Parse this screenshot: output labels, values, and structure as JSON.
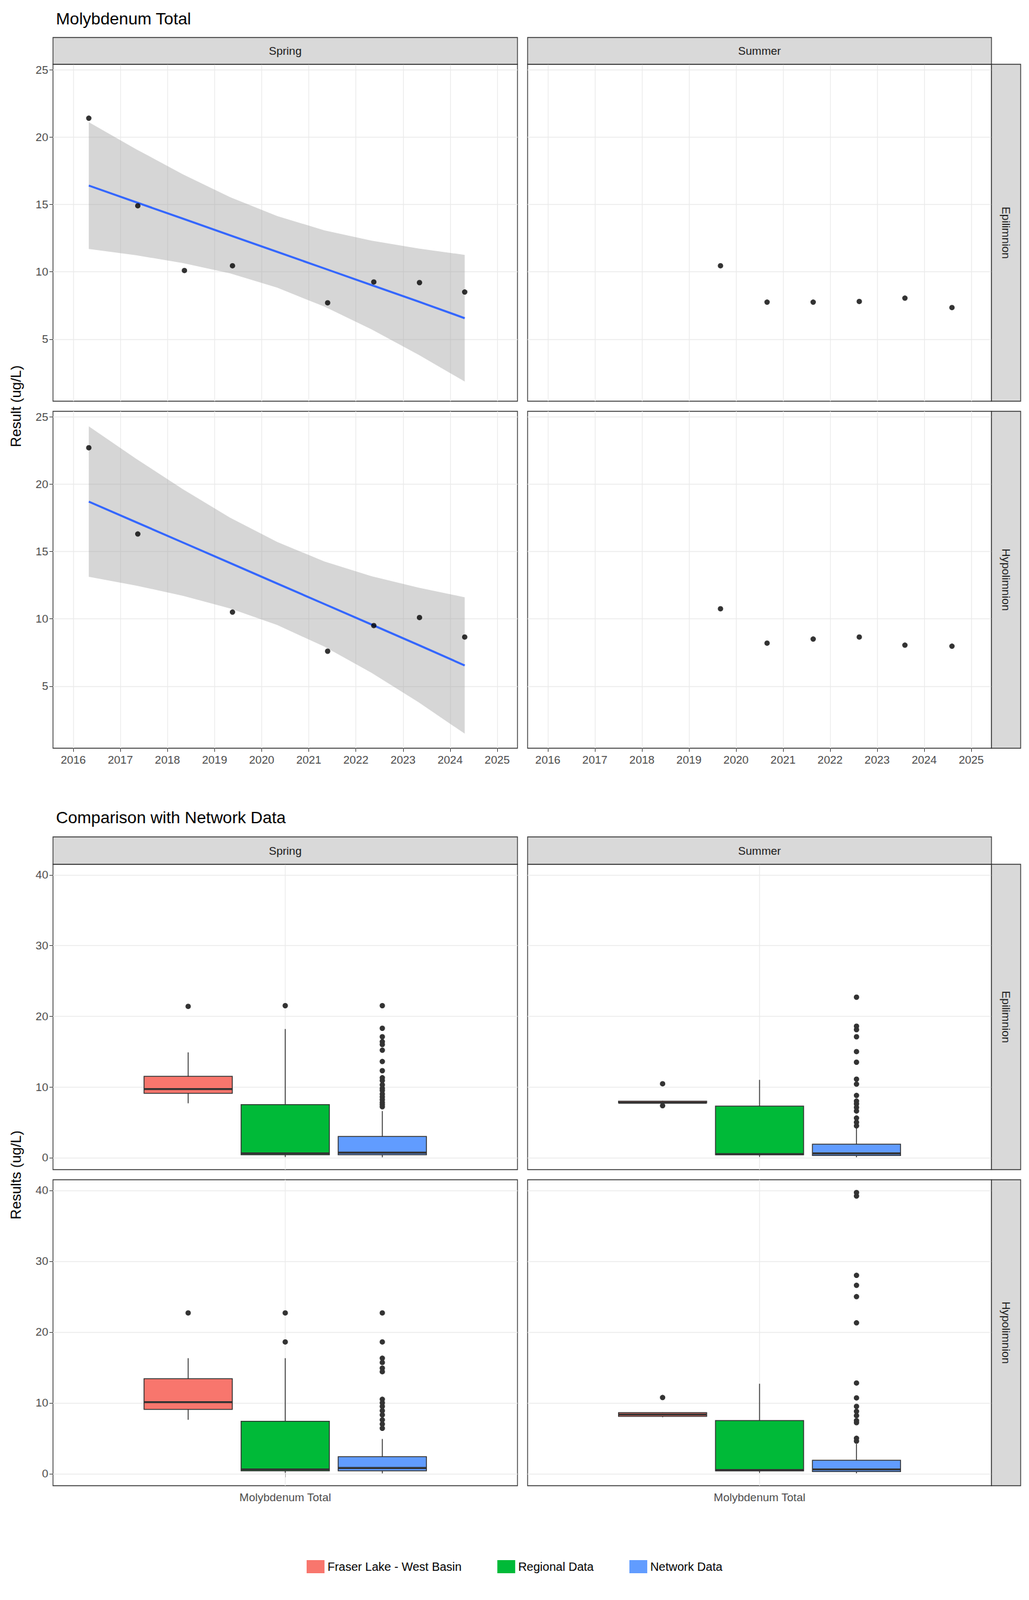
{
  "chart_data": [
    {
      "type": "scatter",
      "title": "Molybdenum Total",
      "y_label": "Result (ug/L)",
      "columns": [
        "Spring",
        "Summer"
      ],
      "rows": [
        "Epilimnion",
        "Hypolimnion"
      ],
      "xlim": [
        2015.57,
        2025.43
      ],
      "xticks": [
        2016,
        2017,
        2018,
        2019,
        2020,
        2021,
        2022,
        2023,
        2024,
        2025
      ],
      "ylim": [
        0.4,
        25.4
      ],
      "yticks": [
        5,
        10,
        15,
        20,
        25
      ],
      "grid": true,
      "color": "#000000",
      "marker": "circle",
      "panels": [
        {
          "column": "Spring",
          "row": "Epilimnion",
          "x": [
            2016.33,
            2017.37,
            2018.36,
            2019.38,
            2021.4,
            2022.38,
            2023.35,
            2024.31
          ],
          "values": [
            21.4,
            14.9,
            10.1,
            10.45,
            7.7,
            9.25,
            9.2,
            8.5
          ],
          "fit": {
            "type": "line",
            "color": "#3366FF",
            "line_style": "solid",
            "x": [
              2016.33,
              2017.33,
              2018.33,
              2019.33,
              2020.33,
              2021.33,
              2022.33,
              2023.33,
              2024.31
            ],
            "values": [
              16.4,
              15.17,
              13.94,
              12.71,
              11.48,
              10.25,
              9.02,
              7.79,
              6.56
            ],
            "lower": [
              11.7,
              11.23,
              10.65,
              9.88,
              8.82,
              7.42,
              5.73,
              3.85,
              1.86
            ],
            "upper": [
              21.1,
              19.11,
              17.23,
              15.54,
              14.14,
              13.08,
              12.31,
              11.73,
              11.26
            ]
          }
        },
        {
          "column": "Summer",
          "row": "Epilimnion",
          "x": [
            2019.67,
            2020.66,
            2021.64,
            2022.62,
            2023.59,
            2024.59
          ],
          "values": [
            10.45,
            7.75,
            7.75,
            7.8,
            8.05,
            7.35
          ]
        },
        {
          "column": "Spring",
          "row": "Hypolimnion",
          "x": [
            2016.33,
            2017.37,
            2019.38,
            2021.4,
            2022.38,
            2023.35,
            2024.31
          ],
          "values": [
            22.7,
            16.3,
            10.5,
            7.6,
            9.5,
            10.1,
            8.65
          ],
          "fit": {
            "type": "line",
            "color": "#3366FF",
            "line_style": "solid",
            "x": [
              2016.33,
              2017.33,
              2018.33,
              2019.33,
              2020.33,
              2021.33,
              2022.33,
              2023.33,
              2024.31
            ],
            "values": [
              18.7,
              17.18,
              15.66,
              14.14,
              12.62,
              11.1,
              9.58,
              8.06,
              6.54
            ],
            "lower": [
              13.12,
              12.47,
              11.71,
              10.77,
              9.54,
              7.94,
              6.0,
              3.81,
              1.48
            ],
            "upper": [
              24.28,
              21.89,
              19.61,
              17.51,
              15.7,
              14.26,
              13.16,
              12.31,
              11.6
            ]
          }
        },
        {
          "column": "Summer",
          "row": "Hypolimnion",
          "x": [
            2019.67,
            2020.66,
            2021.64,
            2022.62,
            2023.59,
            2024.59
          ],
          "values": [
            10.75,
            8.2,
            8.5,
            8.65,
            8.05,
            7.97
          ]
        }
      ]
    },
    {
      "type": "boxplot",
      "title": "Comparison with Network Data",
      "y_label": "Results (ug/L)",
      "columns": [
        "Spring",
        "Summer"
      ],
      "rows": [
        "Epilimnion",
        "Hypolimnion"
      ],
      "categories": [
        "Molybdenum Total"
      ],
      "ylim": [
        -1.7,
        41.5
      ],
      "yticks": [
        0,
        10,
        20,
        30,
        40
      ],
      "grid": true,
      "legend": "bottom",
      "series": [
        {
          "name": "Fraser Lake - West Basin",
          "color": "#F8766D"
        },
        {
          "name": "Regional Data",
          "color": "#00BA38"
        },
        {
          "name": "Network Data",
          "color": "#619CFF"
        }
      ],
      "panels": [
        {
          "column": "Spring",
          "row": "Epilimnion",
          "boxes": [
            {
              "stats": [
                7.7,
                9.1,
                9.7,
                11.5,
                14.9
              ],
              "outliers": [
                21.4
              ]
            },
            {
              "stats": [
                0.1,
                0.4,
                0.6,
                7.5,
                18.2
              ],
              "outliers": [
                21.5
              ]
            },
            {
              "stats": [
                0.05,
                0.4,
                0.7,
                3.0,
                6.6
              ],
              "outliers": [
                21.5,
                18.3,
                17.1,
                16.4,
                16.0,
                15.2,
                13.6,
                12.3,
                11.3,
                10.9,
                10.3,
                9.8,
                9.5,
                9.0,
                8.6,
                8.2,
                7.8,
                7.5,
                7.2
              ]
            }
          ]
        },
        {
          "column": "Summer",
          "row": "Epilimnion",
          "boxes": [
            {
              "stats": [
                7.75,
                7.75,
                7.78,
                7.99,
                8.05
              ],
              "outliers": [
                10.45,
                7.35
              ]
            },
            {
              "stats": [
                0.1,
                0.4,
                0.5,
                7.3,
                11.0
              ],
              "outliers": []
            },
            {
              "stats": [
                0.05,
                0.3,
                0.6,
                1.9,
                4.2
              ],
              "outliers": [
                22.7,
                18.6,
                18.1,
                17.1,
                15.0,
                13.5,
                11.1,
                10.4,
                8.8,
                8.0,
                7.6,
                7.1,
                6.6,
                5.6,
                5.0,
                4.5
              ]
            }
          ]
        },
        {
          "column": "Spring",
          "row": "Hypolimnion",
          "boxes": [
            {
              "stats": [
                7.6,
                9.08,
                10.1,
                13.4,
                16.3
              ],
              "outliers": [
                22.7
              ]
            },
            {
              "stats": [
                0.1,
                0.4,
                0.6,
                7.4,
                16.3
              ],
              "outliers": [
                22.7,
                18.6
              ]
            },
            {
              "stats": [
                0.05,
                0.4,
                0.8,
                2.4,
                4.9
              ],
              "outliers": [
                22.7,
                18.6,
                16.3,
                15.7,
                14.9,
                14.4,
                10.5,
                10.0,
                9.5,
                8.9,
                8.3,
                7.6,
                7.0,
                6.4
              ]
            }
          ]
        },
        {
          "column": "Summer",
          "row": "Hypolimnion",
          "boxes": [
            {
              "stats": [
                7.97,
                8.09,
                8.35,
                8.61,
                8.65
              ],
              "outliers": [
                10.75
              ]
            },
            {
              "stats": [
                0.1,
                0.4,
                0.5,
                7.5,
                12.7
              ],
              "outliers": []
            },
            {
              "stats": [
                0.05,
                0.3,
                0.6,
                1.9,
                4.2
              ],
              "outliers": [
                39.7,
                39.2,
                28.0,
                26.6,
                25.0,
                21.3,
                12.8,
                10.7,
                9.5,
                8.8,
                8.2,
                7.5,
                7.2,
                5.0,
                4.6
              ]
            }
          ]
        }
      ]
    }
  ]
}
